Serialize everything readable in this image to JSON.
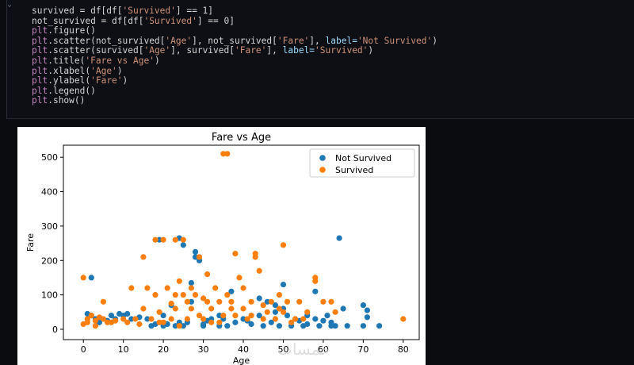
{
  "code": {
    "lines": [
      [
        {
          "t": "survived = df[df[",
          "c": "#d4d4d4"
        },
        {
          "t": "'Survived'",
          "c": "#ce9178"
        },
        {
          "t": "] == 1]",
          "c": "#d4d4d4"
        }
      ],
      [
        {
          "t": "not_survived = df[df[",
          "c": "#d4d4d4"
        },
        {
          "t": "'Survived'",
          "c": "#ce9178"
        },
        {
          "t": "] == 0]",
          "c": "#d4d4d4"
        }
      ],
      [
        {
          "t": "plt",
          "c": "#c586c0"
        },
        {
          "t": ".figure()",
          "c": "#d4d4d4"
        }
      ],
      [
        {
          "t": "plt",
          "c": "#c586c0"
        },
        {
          "t": ".scatter(not_survived[",
          "c": "#d4d4d4"
        },
        {
          "t": "'Age'",
          "c": "#ce9178"
        },
        {
          "t": "], not_survived[",
          "c": "#d4d4d4"
        },
        {
          "t": "'Fare'",
          "c": "#ce9178"
        },
        {
          "t": "], ",
          "c": "#d4d4d4"
        },
        {
          "t": "label=",
          "c": "#9cdcfe"
        },
        {
          "t": "'Not Survived'",
          "c": "#ce9178"
        },
        {
          "t": ")",
          "c": "#d4d4d4"
        }
      ],
      [
        {
          "t": "plt",
          "c": "#c586c0"
        },
        {
          "t": ".scatter(survived[",
          "c": "#d4d4d4"
        },
        {
          "t": "'Age'",
          "c": "#ce9178"
        },
        {
          "t": "], survived[",
          "c": "#d4d4d4"
        },
        {
          "t": "'Fare'",
          "c": "#ce9178"
        },
        {
          "t": "], ",
          "c": "#d4d4d4"
        },
        {
          "t": "label=",
          "c": "#9cdcfe"
        },
        {
          "t": "'Survived'",
          "c": "#ce9178"
        },
        {
          "t": ")",
          "c": "#d4d4d4"
        }
      ],
      [
        {
          "t": "plt",
          "c": "#c586c0"
        },
        {
          "t": ".title(",
          "c": "#d4d4d4"
        },
        {
          "t": "'Fare vs Age'",
          "c": "#ce9178"
        },
        {
          "t": ")",
          "c": "#d4d4d4"
        }
      ],
      [
        {
          "t": "plt",
          "c": "#c586c0"
        },
        {
          "t": ".xlabel(",
          "c": "#d4d4d4"
        },
        {
          "t": "'Age'",
          "c": "#ce9178"
        },
        {
          "t": ")",
          "c": "#d4d4d4"
        }
      ],
      [
        {
          "t": "plt",
          "c": "#c586c0"
        },
        {
          "t": ".ylabel(",
          "c": "#d4d4d4"
        },
        {
          "t": "'Fare'",
          "c": "#ce9178"
        },
        {
          "t": ")",
          "c": "#d4d4d4"
        }
      ],
      [
        {
          "t": "plt",
          "c": "#c586c0"
        },
        {
          "t": ".legend()",
          "c": "#d4d4d4"
        }
      ],
      [
        {
          "t": "plt",
          "c": "#c586c0"
        },
        {
          "t": ".show()",
          "c": "#d4d4d4"
        }
      ]
    ]
  },
  "watermark": "خمسات",
  "chart_data": {
    "type": "scatter",
    "title": "Fare vs Age",
    "xlabel": "Age",
    "ylabel": "Fare",
    "xlim": [
      -5,
      84
    ],
    "ylim": [
      -30,
      535
    ],
    "xticks": [
      0,
      10,
      20,
      30,
      40,
      50,
      60,
      70,
      80
    ],
    "yticks": [
      0,
      100,
      200,
      300,
      400,
      500
    ],
    "legend_position": "top-right",
    "series": [
      {
        "name": "Not Survived",
        "color": "#1f77b4",
        "points": [
          [
            1,
            45
          ],
          [
            2,
            40
          ],
          [
            2,
            150
          ],
          [
            3,
            30
          ],
          [
            4,
            20
          ],
          [
            4,
            30
          ],
          [
            6,
            25
          ],
          [
            7,
            40
          ],
          [
            8,
            30
          ],
          [
            9,
            45
          ],
          [
            10,
            40
          ],
          [
            11,
            45
          ],
          [
            12,
            30
          ],
          [
            14,
            35
          ],
          [
            16,
            30
          ],
          [
            17,
            10
          ],
          [
            18,
            15
          ],
          [
            19,
            260
          ],
          [
            20,
            10
          ],
          [
            20,
            40
          ],
          [
            21,
            15
          ],
          [
            22,
            70
          ],
          [
            23,
            10
          ],
          [
            24,
            20
          ],
          [
            24,
            265
          ],
          [
            25,
            10
          ],
          [
            25,
            245
          ],
          [
            26,
            20
          ],
          [
            27,
            80
          ],
          [
            27,
            135
          ],
          [
            28,
            210
          ],
          [
            28,
            225
          ],
          [
            29,
            200
          ],
          [
            30,
            10
          ],
          [
            30,
            15
          ],
          [
            31,
            25
          ],
          [
            32,
            30
          ],
          [
            34,
            10
          ],
          [
            34,
            40
          ],
          [
            35,
            30
          ],
          [
            36,
            10
          ],
          [
            37,
            110
          ],
          [
            38,
            20
          ],
          [
            40,
            30
          ],
          [
            41,
            25
          ],
          [
            42,
            15
          ],
          [
            44,
            40
          ],
          [
            44,
            90
          ],
          [
            45,
            10
          ],
          [
            46,
            80
          ],
          [
            47,
            20
          ],
          [
            48,
            70
          ],
          [
            48,
            50
          ],
          [
            49,
            10
          ],
          [
            50,
            60
          ],
          [
            50,
            130
          ],
          [
            51,
            40
          ],
          [
            52,
            10
          ],
          [
            53,
            30
          ],
          [
            54,
            25
          ],
          [
            55,
            10
          ],
          [
            56,
            40
          ],
          [
            56,
            15
          ],
          [
            58,
            30
          ],
          [
            58,
            110
          ],
          [
            59,
            10
          ],
          [
            60,
            25
          ],
          [
            61,
            40
          ],
          [
            62,
            10
          ],
          [
            62,
            20
          ],
          [
            63,
            10
          ],
          [
            64,
            265
          ],
          [
            65,
            60
          ],
          [
            66,
            10
          ],
          [
            70,
            70
          ],
          [
            70,
            10
          ],
          [
            71,
            55
          ],
          [
            71,
            35
          ],
          [
            74,
            10
          ]
        ]
      },
      {
        "name": "Survived",
        "color": "#ff7f0e",
        "points": [
          [
            0,
            15
          ],
          [
            0,
            150
          ],
          [
            1,
            30
          ],
          [
            1,
            20
          ],
          [
            2,
            40
          ],
          [
            3,
            25
          ],
          [
            3,
            10
          ],
          [
            4,
            35
          ],
          [
            5,
            80
          ],
          [
            5,
            30
          ],
          [
            6,
            20
          ],
          [
            7,
            20
          ],
          [
            8,
            25
          ],
          [
            10,
            30
          ],
          [
            11,
            20
          ],
          [
            12,
            120
          ],
          [
            13,
            30
          ],
          [
            14,
            15
          ],
          [
            15,
            210
          ],
          [
            15,
            60
          ],
          [
            16,
            120
          ],
          [
            17,
            30
          ],
          [
            18,
            260
          ],
          [
            18,
            100
          ],
          [
            19,
            20
          ],
          [
            19,
            50
          ],
          [
            20,
            20
          ],
          [
            20,
            260
          ],
          [
            21,
            120
          ],
          [
            22,
            30
          ],
          [
            22,
            75
          ],
          [
            23,
            60
          ],
          [
            23,
            100
          ],
          [
            23,
            260
          ],
          [
            24,
            10
          ],
          [
            24,
            140
          ],
          [
            25,
            100
          ],
          [
            25,
            260
          ],
          [
            26,
            80
          ],
          [
            26,
            30
          ],
          [
            27,
            60
          ],
          [
            27,
            120
          ],
          [
            28,
            100
          ],
          [
            29,
            40
          ],
          [
            29,
            210
          ],
          [
            30,
            30
          ],
          [
            30,
            90
          ],
          [
            31,
            80
          ],
          [
            31,
            160
          ],
          [
            32,
            60
          ],
          [
            32,
            20
          ],
          [
            33,
            120
          ],
          [
            34,
            80
          ],
          [
            34,
            20
          ],
          [
            35,
            40
          ],
          [
            35,
            510
          ],
          [
            36,
            510
          ],
          [
            36,
            100
          ],
          [
            37,
            60
          ],
          [
            37,
            80
          ],
          [
            38,
            220
          ],
          [
            38,
            40
          ],
          [
            39,
            150
          ],
          [
            40,
            120
          ],
          [
            40,
            60
          ],
          [
            41,
            30
          ],
          [
            42,
            40
          ],
          [
            42,
            80
          ],
          [
            43,
            210
          ],
          [
            43,
            220
          ],
          [
            44,
            170
          ],
          [
            45,
            70
          ],
          [
            45,
            30
          ],
          [
            46,
            50
          ],
          [
            47,
            80
          ],
          [
            48,
            30
          ],
          [
            49,
            60
          ],
          [
            49,
            100
          ],
          [
            50,
            50
          ],
          [
            50,
            245
          ],
          [
            51,
            80
          ],
          [
            52,
            20
          ],
          [
            53,
            30
          ],
          [
            54,
            80
          ],
          [
            55,
            30
          ],
          [
            56,
            50
          ],
          [
            58,
            150
          ],
          [
            58,
            140
          ],
          [
            60,
            80
          ],
          [
            62,
            80
          ],
          [
            63,
            50
          ],
          [
            80,
            30
          ]
        ]
      }
    ]
  }
}
